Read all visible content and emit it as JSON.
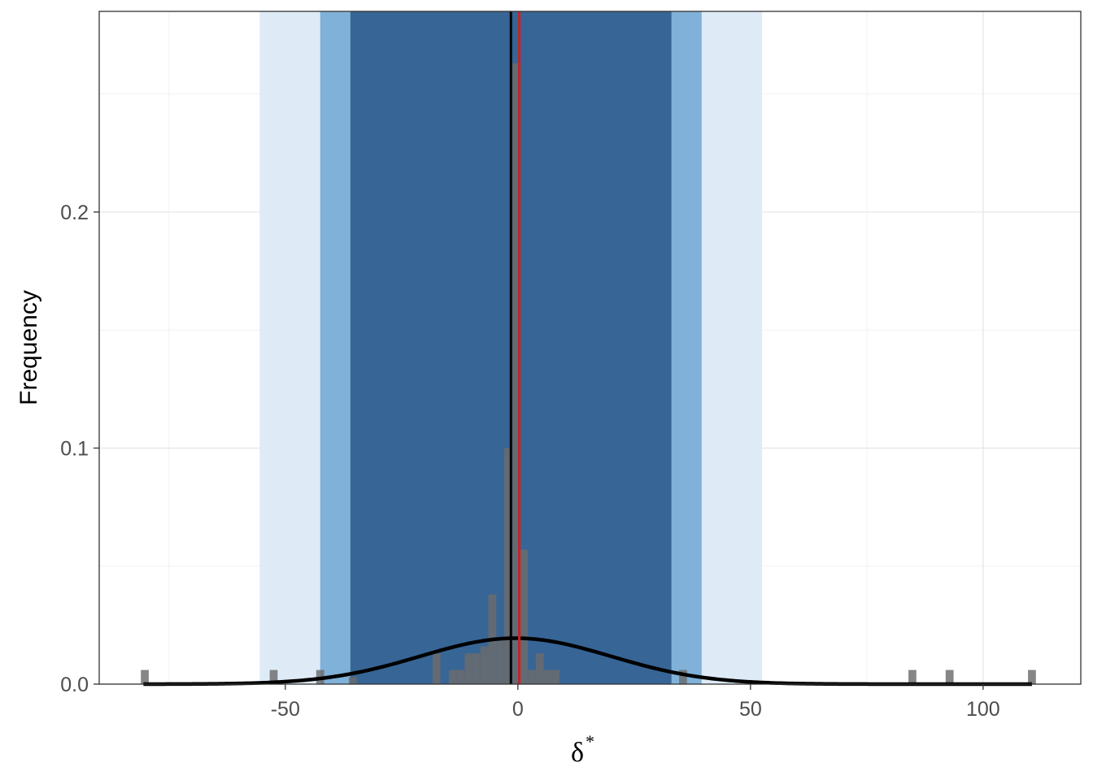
{
  "chart_data": {
    "type": "bar",
    "xlabel": "δ",
    "xlabel_superscript": "*",
    "ylabel": "Frequency",
    "xlim": [
      -90,
      121
    ],
    "ylim": [
      0,
      0.285
    ],
    "x_ticks": [
      -50,
      0,
      50,
      100
    ],
    "x_tick_labels": [
      "-50",
      "0",
      "50",
      "100"
    ],
    "y_ticks": [
      0.0,
      0.1,
      0.2
    ],
    "y_tick_labels": [
      "0.0",
      "0.1",
      "0.2"
    ],
    "y_minor_ticks": [
      0.05,
      0.15,
      0.25
    ],
    "x_minor_ticks": [
      -75,
      -25,
      25,
      75
    ],
    "grid": true,
    "bands": [
      {
        "name": "outer",
        "x0": -55.5,
        "x1": 52.5,
        "color": "#deebf7"
      },
      {
        "name": "middle",
        "x0": -42.5,
        "x1": 39.5,
        "color": "#80b1d8"
      },
      {
        "name": "inner",
        "x0": -36.0,
        "x1": 33.0,
        "color": "#376596"
      }
    ],
    "histogram": {
      "bin_width": 1.7,
      "color": "#6b6b6b",
      "bars": [
        {
          "x": -80.2,
          "y": 0.006
        },
        {
          "x": -52.5,
          "y": 0.006
        },
        {
          "x": -42.5,
          "y": 0.006
        },
        {
          "x": -35.5,
          "y": 0.003
        },
        {
          "x": -17.5,
          "y": 0.013
        },
        {
          "x": -14.0,
          "y": 0.006
        },
        {
          "x": -12.3,
          "y": 0.006
        },
        {
          "x": -10.6,
          "y": 0.013
        },
        {
          "x": -8.9,
          "y": 0.013
        },
        {
          "x": -7.2,
          "y": 0.016
        },
        {
          "x": -5.5,
          "y": 0.038
        },
        {
          "x": -3.8,
          "y": 0.02
        },
        {
          "x": -2.1,
          "y": 0.1
        },
        {
          "x": -0.4,
          "y": 0.263
        },
        {
          "x": 1.3,
          "y": 0.057
        },
        {
          "x": 3.0,
          "y": 0.006
        },
        {
          "x": 4.7,
          "y": 0.013
        },
        {
          "x": 6.4,
          "y": 0.006
        },
        {
          "x": 8.1,
          "y": 0.006
        },
        {
          "x": 35.5,
          "y": 0.006
        },
        {
          "x": 84.8,
          "y": 0.006
        },
        {
          "x": 92.8,
          "y": 0.006
        },
        {
          "x": 110.5,
          "y": 0.006
        }
      ]
    },
    "density_curve": {
      "color": "#000000",
      "mean": -0.5,
      "sd": 20.5,
      "x_range": [
        -80.5,
        110.5
      ]
    },
    "vlines": [
      {
        "name": "black-line",
        "x": -1.5,
        "color": "#000000"
      },
      {
        "name": "red-line",
        "x": 0.3,
        "color": "#cc2222"
      }
    ]
  }
}
